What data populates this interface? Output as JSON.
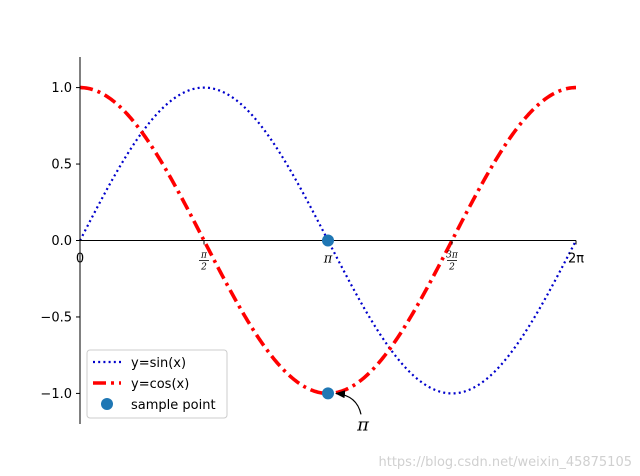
{
  "chart_data": {
    "type": "line",
    "title": "",
    "xlabel": "",
    "ylabel": "",
    "xlim": [
      0,
      6.2832
    ],
    "ylim": [
      -1.2,
      1.2
    ],
    "grid": false,
    "legend_position": "lower-left",
    "x_ticks": [
      {
        "value": 0,
        "kind": "plain",
        "label": "0"
      },
      {
        "value": 1.5708,
        "kind": "frac",
        "num": "π",
        "den": "2"
      },
      {
        "value": 3.1416,
        "kind": "pi",
        "label": "π"
      },
      {
        "value": 4.7124,
        "kind": "frac",
        "num": "3π",
        "den": "2"
      },
      {
        "value": 6.2832,
        "kind": "plain",
        "label": "2π"
      }
    ],
    "y_ticks": [
      {
        "value": 1.0,
        "label": "1.0"
      },
      {
        "value": 0.5,
        "label": "0.5"
      },
      {
        "value": 0.0,
        "label": "0.0"
      },
      {
        "value": -0.5,
        "label": "−0.5"
      },
      {
        "value": -1.0,
        "label": "−1.0"
      }
    ],
    "series": [
      {
        "name": "y=sin(x)",
        "function": "sin",
        "color": "#0000cc",
        "style": "dotted"
      },
      {
        "name": "y=cos(x)",
        "function": "cos",
        "color": "#ff0000",
        "style": "dashdot"
      }
    ],
    "points": {
      "name": "sample point",
      "color": "#1f77b4",
      "x": [
        3.1416,
        3.1416
      ],
      "y": [
        0.0,
        -1.0
      ]
    },
    "annotation": {
      "text": "π",
      "x": 3.1416,
      "y": -1.0
    }
  },
  "watermark": "https://blog.csdn.net/weixin_45875105"
}
